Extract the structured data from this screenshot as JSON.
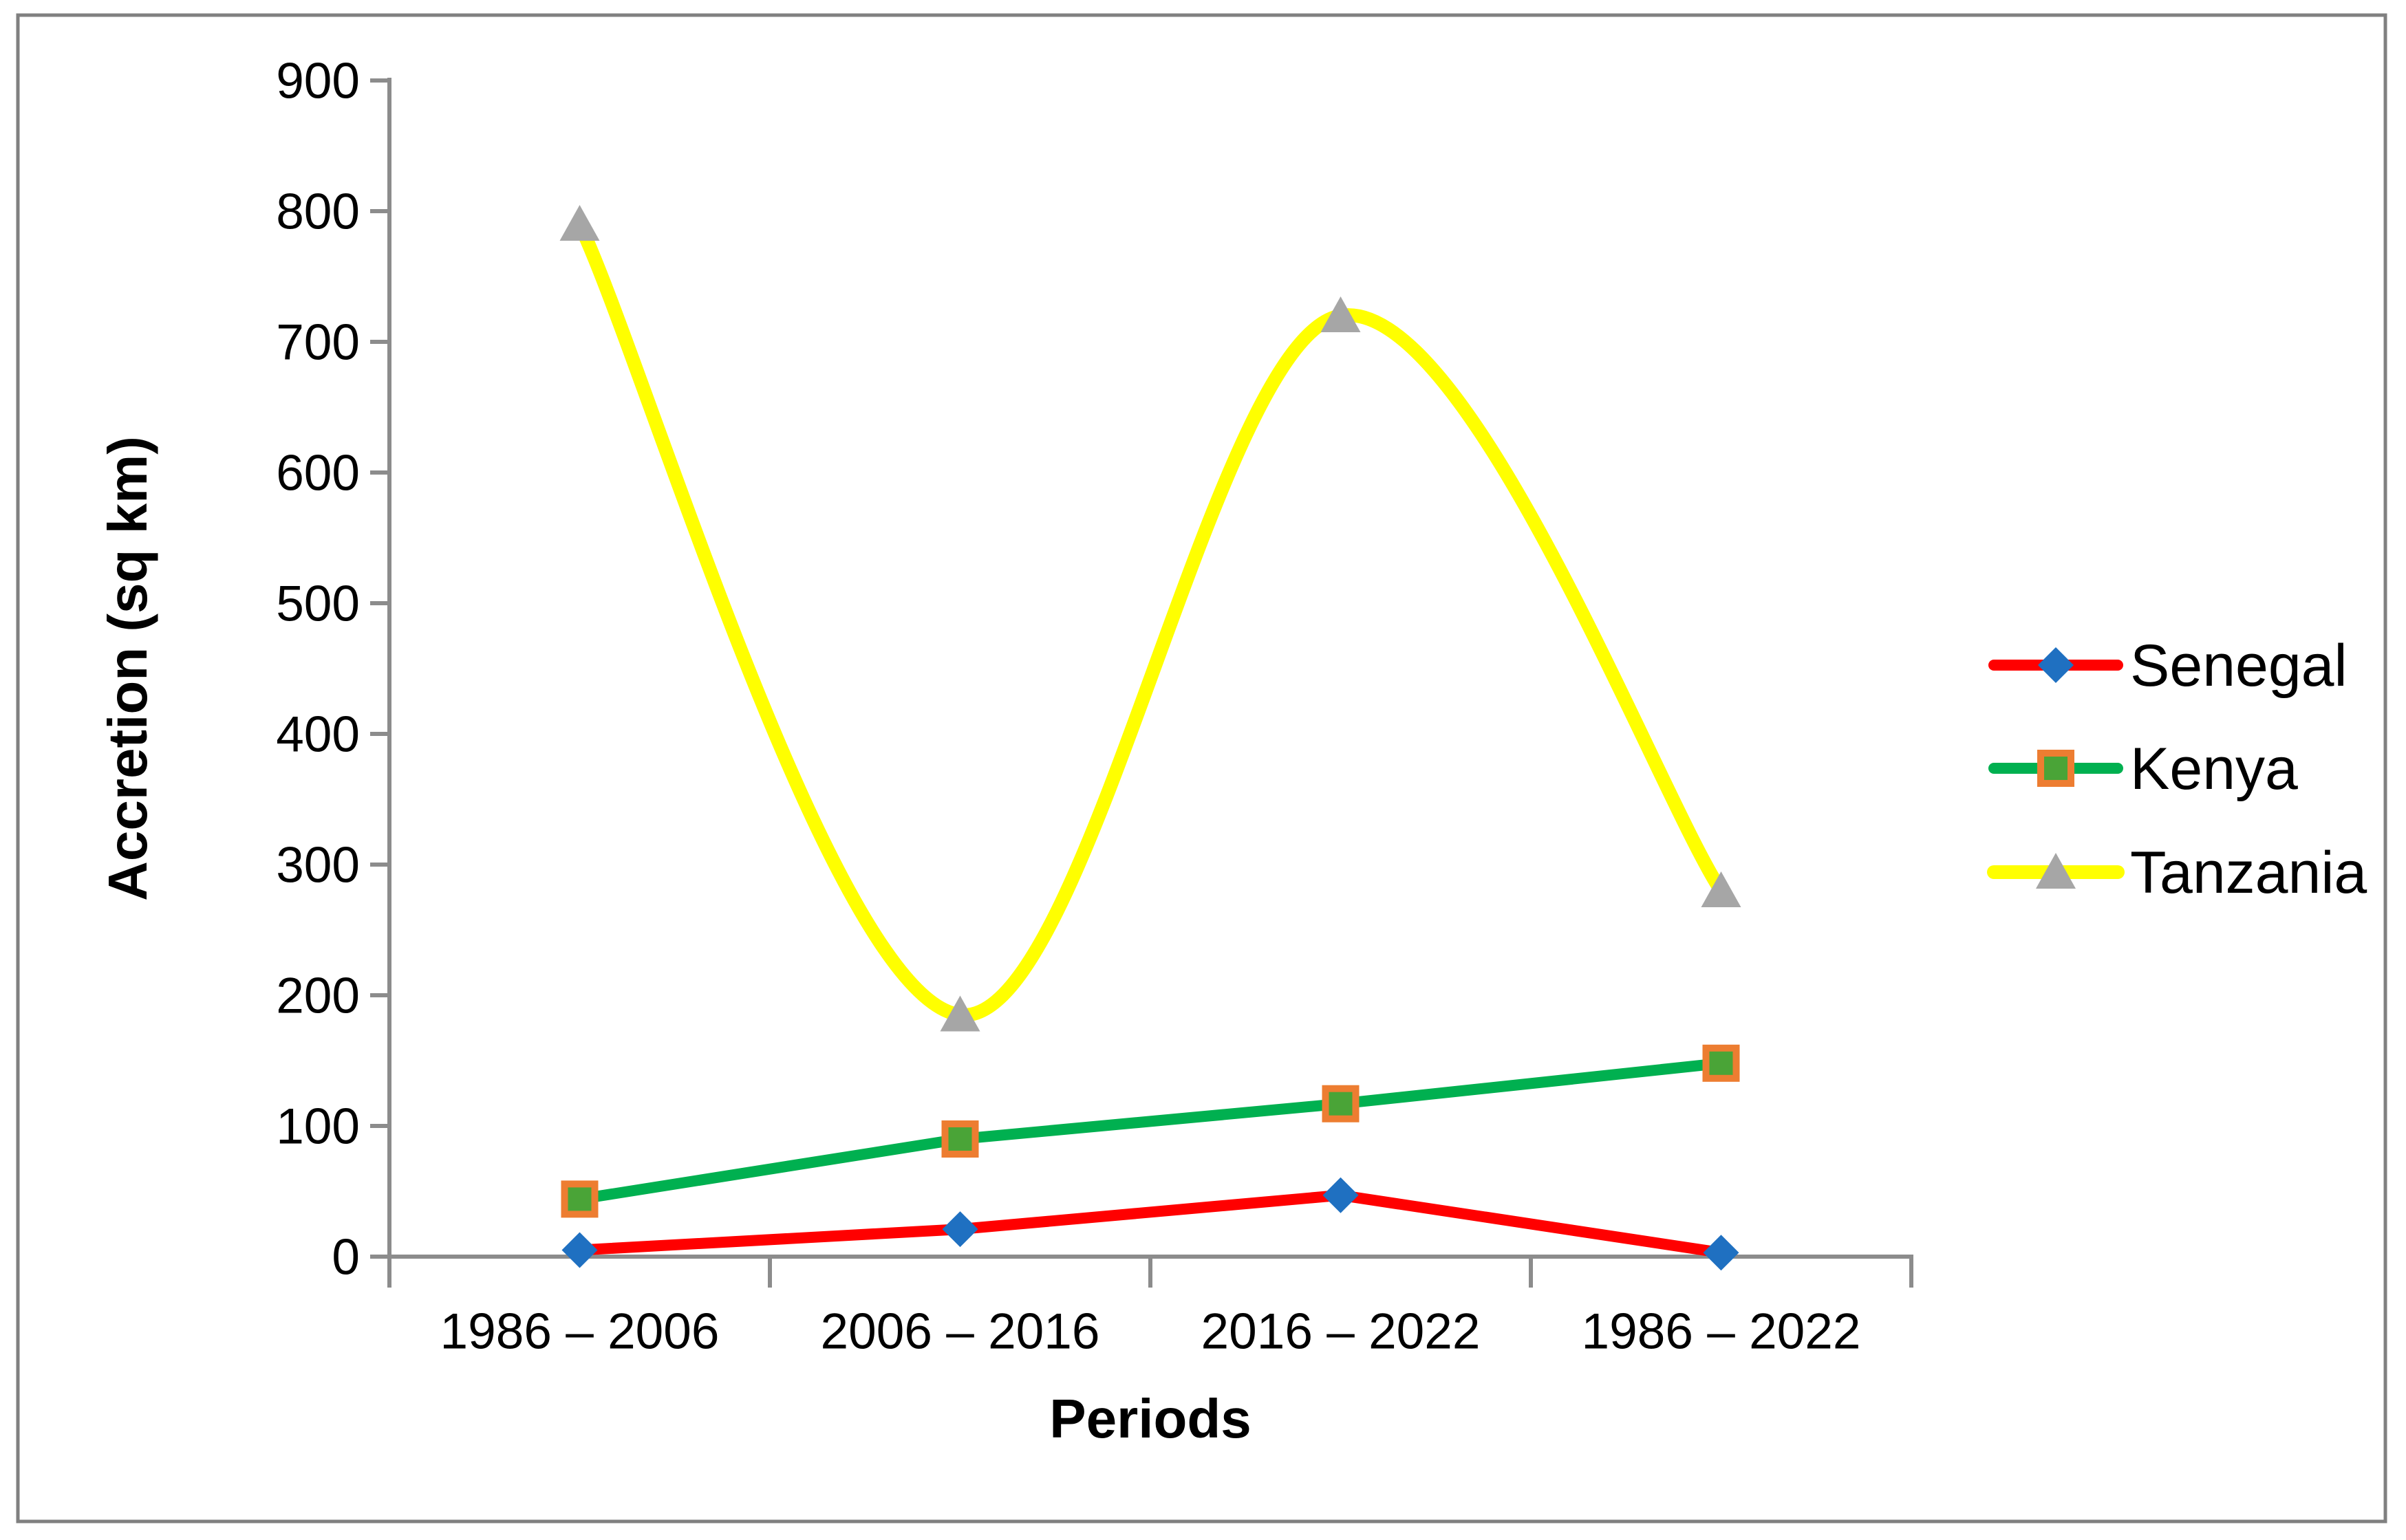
{
  "figure": {
    "background": "#FFFFFF",
    "border_color": "#808080"
  },
  "chart_data": {
    "type": "line",
    "title": "",
    "xlabel": "Periods",
    "ylabel": "Accretion (sq km)",
    "categories": [
      "1986 – 2006",
      "2006 – 2016",
      "2016 – 2022",
      "1986 – 2022"
    ],
    "series": [
      {
        "name": "Senegal",
        "values": [
          5,
          21,
          47,
          3
        ],
        "line_color": "#FF0000",
        "marker": "diamond",
        "marker_color": "#1F70C1",
        "smooth": false
      },
      {
        "name": "Kenya",
        "values": [
          44,
          90,
          117,
          148
        ],
        "line_color": "#00B050",
        "marker": "square",
        "marker_color": "#4AA437",
        "marker_border_color": "#ED7D31",
        "smooth": false
      },
      {
        "name": "Tanzania",
        "values": [
          790,
          185,
          720,
          280
        ],
        "line_color": "#FFFF00",
        "marker": "triangle",
        "marker_color": "#A6A6A6",
        "smooth": true
      }
    ],
    "ylim": [
      0,
      900
    ],
    "ytick_step": 100,
    "yticks": [
      0,
      100,
      200,
      300,
      400,
      500,
      600,
      700,
      800,
      900
    ],
    "grid": false,
    "legend_position": "right",
    "axis_color": "#8C8C8C",
    "text_color": "#000000"
  }
}
